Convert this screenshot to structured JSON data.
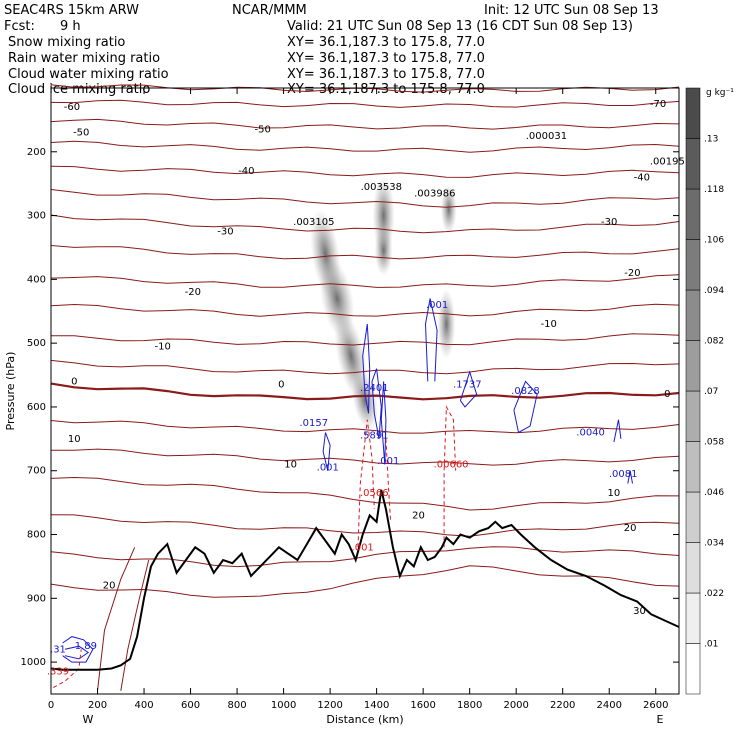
{
  "header": {
    "model": "SEAC4RS 15km ARW",
    "fcst_label": "Fcst:",
    "fcst_value": "9 h",
    "center": "NCAR/MMM",
    "init": "Init: 12 UTC Sun 08 Sep 13",
    "valid": "Valid: 21 UTC Sun 08 Sep 13 (16 CDT Sun 08 Sep 13)"
  },
  "fields": [
    {
      "label": "Snow mixing ratio",
      "xy": "XY=  36.1,187.3 to 175.8, 77.0",
      "color": "#000000"
    },
    {
      "label": "Rain water mixing ratio",
      "xy": "XY=  36.1,187.3 to 175.8, 77.0",
      "color": "#e01818"
    },
    {
      "label": "Cloud water mixing ratio",
      "xy": "XY=  36.1,187.3 to 175.8, 77.0",
      "color": "#1a1ad0"
    },
    {
      "label": "Cloud ice mixing ratio",
      "xy": "XY=  36.1,187.3 to 175.8, 77.0",
      "color": "#000000"
    }
  ],
  "chart_data": {
    "type": "contour-cross-section",
    "xlabel": "Distance (km)",
    "ylabel": "Pressure (hPa)",
    "xlim": [
      0,
      2700
    ],
    "ylim": [
      1050,
      100
    ],
    "x_ticks": [
      0,
      200,
      400,
      600,
      800,
      1000,
      1200,
      1400,
      1600,
      1800,
      2000,
      2200,
      2400,
      2600
    ],
    "y_ticks": [
      200,
      300,
      400,
      500,
      600,
      700,
      800,
      900,
      1000
    ],
    "end_labels": {
      "left": "W",
      "right": "E"
    },
    "colorbar": {
      "unit": "g kg⁻¹",
      "levels": [
        ".01",
        ".022",
        ".034",
        ".046",
        ".058",
        ".07",
        ".082",
        ".094",
        ".106",
        ".118",
        ".13"
      ]
    },
    "temperature_contours": {
      "color": "#8b1a1a",
      "labels": [
        {
          "text": "-70",
          "x": 2610,
          "p": 125
        },
        {
          "text": "-60",
          "x": 90,
          "p": 130
        },
        {
          "text": "-50",
          "x": 130,
          "p": 170
        },
        {
          "text": "-50",
          "x": 910,
          "p": 165
        },
        {
          "text": "-40",
          "x": 840,
          "p": 230
        },
        {
          "text": "-40",
          "x": 2540,
          "p": 240
        },
        {
          "text": "-30",
          "x": 750,
          "p": 325
        },
        {
          "text": "-30",
          "x": 2400,
          "p": 310
        },
        {
          "text": "-20",
          "x": 610,
          "p": 420
        },
        {
          "text": "-20",
          "x": 2500,
          "p": 390
        },
        {
          "text": "-10",
          "x": 480,
          "p": 505
        },
        {
          "text": "-10",
          "x": 2140,
          "p": 470
        },
        {
          "text": "0",
          "x": 100,
          "p": 560
        },
        {
          "text": "0",
          "x": 990,
          "p": 565
        },
        {
          "text": "0",
          "x": 2650,
          "p": 580
        },
        {
          "text": "10",
          "x": 100,
          "p": 650
        },
        {
          "text": "10",
          "x": 1030,
          "p": 690
        },
        {
          "text": "10",
          "x": 2420,
          "p": 735
        },
        {
          "text": "20",
          "x": 250,
          "p": 880
        },
        {
          "text": "20",
          "x": 1580,
          "p": 770
        },
        {
          "text": "20",
          "x": 2490,
          "p": 790
        },
        {
          "text": "30",
          "x": 2530,
          "p": 920
        }
      ]
    },
    "maxima": [
      {
        "text": ".003105",
        "x": 1130,
        "p": 310,
        "color": "#000000"
      },
      {
        "text": ".003538",
        "x": 1420,
        "p": 255,
        "color": "#000000"
      },
      {
        "text": ".003986",
        "x": 1650,
        "p": 265,
        "color": "#000000"
      },
      {
        "text": ".000031",
        "x": 2130,
        "p": 175,
        "color": "#000000"
      },
      {
        "text": ".00195",
        "x": 2650,
        "p": 215,
        "color": "#000000"
      },
      {
        "text": ".001",
        "x": 1660,
        "p": 440,
        "color": "#1a1ad0"
      },
      {
        "text": ".1737",
        "x": 1790,
        "p": 565,
        "color": "#1a1ad0"
      },
      {
        "text": ".0828",
        "x": 2040,
        "p": 575,
        "color": "#1a1ad0"
      },
      {
        "text": ".0040",
        "x": 2320,
        "p": 640,
        "color": "#1a1ad0"
      },
      {
        "text": ".0081",
        "x": 2460,
        "p": 705,
        "color": "#1a1ad0"
      },
      {
        "text": ".0157",
        "x": 1130,
        "p": 625,
        "color": "#1a1ad0"
      },
      {
        "text": ".001",
        "x": 1190,
        "p": 695,
        "color": "#1a1ad0"
      },
      {
        "text": ".5891",
        "x": 1390,
        "p": 645,
        "color": "#1a1ad0"
      },
      {
        "text": ".001",
        "x": 1450,
        "p": 685,
        "color": "#1a1ad0"
      },
      {
        "text": ".2401",
        "x": 1390,
        "p": 570,
        "color": "#1a1ad0"
      },
      {
        "text": ".0566",
        "x": 1390,
        "p": 735,
        "color": "#e01818"
      },
      {
        "text": ".00660",
        "x": 1720,
        "p": 690,
        "color": "#e01818"
      },
      {
        "text": ".001",
        "x": 1340,
        "p": 820,
        "color": "#e01818"
      },
      {
        "text": "1.89",
        "x": 150,
        "p": 975,
        "color": "#1a1ad0"
      },
      {
        "text": ".31",
        "x": 30,
        "p": 980,
        "color": "#1a1ad0"
      },
      {
        "text": ".339",
        "x": 30,
        "p": 1015,
        "color": "#e01818"
      }
    ],
    "terrain": {
      "x": [
        0,
        50,
        120,
        200,
        260,
        300,
        340,
        370,
        400,
        430,
        460,
        500,
        540,
        580,
        620,
        660,
        700,
        740,
        780,
        820,
        860,
        900,
        940,
        980,
        1020,
        1060,
        1100,
        1140,
        1180,
        1220,
        1250,
        1280,
        1310,
        1340,
        1370,
        1400,
        1420,
        1440,
        1470,
        1500,
        1530,
        1560,
        1590,
        1620,
        1650,
        1680,
        1700,
        1730,
        1760,
        1800,
        1840,
        1880,
        1910,
        1940,
        1980,
        2020,
        2080,
        2150,
        2220,
        2300,
        2380,
        2450,
        2520,
        2580,
        2640,
        2700
      ],
      "p": [
        1010,
        1012,
        1012,
        1012,
        1010,
        1005,
        995,
        960,
        900,
        850,
        830,
        815,
        860,
        840,
        820,
        830,
        860,
        840,
        845,
        830,
        865,
        850,
        835,
        820,
        830,
        840,
        815,
        790,
        810,
        830,
        800,
        815,
        840,
        800,
        770,
        780,
        730,
        760,
        820,
        865,
        840,
        850,
        820,
        840,
        835,
        820,
        805,
        815,
        800,
        805,
        795,
        790,
        780,
        790,
        785,
        800,
        820,
        840,
        855,
        865,
        880,
        895,
        905,
        925,
        935,
        945
      ]
    }
  }
}
